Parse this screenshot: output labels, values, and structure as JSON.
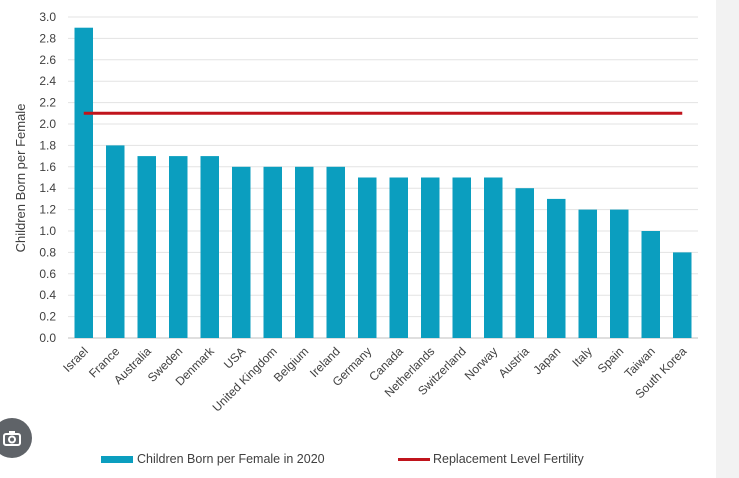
{
  "chart_data": {
    "type": "bar",
    "title": "",
    "xlabel": "",
    "ylabel": "Children Born per Female",
    "ylim": [
      0,
      3.0
    ],
    "yticks": [
      "0.0",
      "0.2",
      "0.4",
      "0.6",
      "0.8",
      "1.0",
      "1.2",
      "1.4",
      "1.6",
      "1.8",
      "2.0",
      "2.2",
      "2.4",
      "2.6",
      "2.8",
      "3.0"
    ],
    "grid": true,
    "legend_position": "bottom",
    "categories": [
      "Israel",
      "France",
      "Australia",
      "Sweden",
      "Denmark",
      "USA",
      "United Kingdom",
      "Belgium",
      "Ireland",
      "Germany",
      "Canada",
      "Netherlands",
      "Switzerland",
      "Norway",
      "Austria",
      "Japan",
      "Italy",
      "Spain",
      "Taiwan",
      "South Korea"
    ],
    "series": [
      {
        "name": "Children Born per Female in 2020",
        "kind": "bar",
        "color": "#0b9ebf",
        "values": [
          2.9,
          1.8,
          1.7,
          1.7,
          1.7,
          1.6,
          1.6,
          1.6,
          1.6,
          1.5,
          1.5,
          1.5,
          1.5,
          1.5,
          1.4,
          1.3,
          1.2,
          1.2,
          1.0,
          0.8
        ]
      },
      {
        "name": "Replacement Level Fertility",
        "kind": "line",
        "color": "#c0141c",
        "value": 2.1
      }
    ]
  },
  "icons": {
    "badge": "lens-icon"
  }
}
